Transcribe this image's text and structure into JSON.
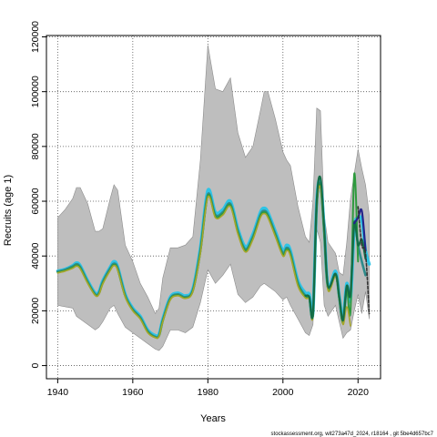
{
  "chart_data": {
    "type": "line",
    "title": "",
    "xlabel": "Years",
    "ylabel": "Recruits (age 1)",
    "xlim": [
      1937,
      2026
    ],
    "ylim": [
      -4800,
      120500
    ],
    "x_ticks": [
      1940,
      1960,
      1980,
      2000,
      2020
    ],
    "y_ticks": [
      0,
      20000,
      40000,
      60000,
      80000,
      100000,
      120000
    ],
    "grid": true,
    "legend": "none",
    "footnote": "stockassessment.org, wit273a47d_2024, r18164 , git 5be4d657bc7",
    "colors": {
      "band": "#bebebe",
      "band_outline": "#8c8c8c",
      "cyan": "#2ec4e6",
      "teal": "#2e8b8b",
      "green": "#2e9a3e",
      "olive": "#a6a62a",
      "dark_green": "#136d46",
      "navy": "#24248c",
      "dashed": "#333333"
    },
    "confidence_band": {
      "x": [
        1940,
        1942,
        1944,
        1945,
        1946,
        1948,
        1950,
        1951,
        1952,
        1954,
        1955,
        1956,
        1958,
        1960,
        1962,
        1964,
        1966,
        1967,
        1968,
        1970,
        1972,
        1974,
        1976,
        1978,
        1980,
        1982,
        1984,
        1986,
        1988,
        1990,
        1992,
        1994,
        1995,
        1996,
        1998,
        2000,
        2001,
        2002,
        2004,
        2006,
        2007,
        2008,
        2009,
        2010,
        2011,
        2012,
        2014,
        2015,
        2016,
        2017,
        2018,
        2019,
        2020,
        2021,
        2022,
        2023
      ],
      "upper": [
        54000,
        57000,
        61000,
        65000,
        65000,
        59000,
        49000,
        49000,
        50000,
        61000,
        66000,
        64000,
        44000,
        38000,
        30000,
        25000,
        19000,
        21000,
        32000,
        43000,
        43000,
        44000,
        47000,
        75000,
        117000,
        101000,
        100000,
        105000,
        85000,
        76000,
        80000,
        93000,
        100000,
        100000,
        90000,
        78000,
        75000,
        73000,
        58000,
        47000,
        45000,
        60000,
        94000,
        93000,
        55000,
        45000,
        41000,
        34000,
        33000,
        45000,
        61000,
        70000,
        79000,
        72000,
        66000,
        55000
      ],
      "lower": [
        22000,
        21500,
        21000,
        18000,
        17000,
        15000,
        13000,
        14000,
        16000,
        21000,
        22000,
        19000,
        14000,
        12000,
        10000,
        8000,
        6000,
        5500,
        7000,
        13000,
        13000,
        12000,
        14000,
        23000,
        35000,
        30000,
        33000,
        37000,
        26000,
        23000,
        25000,
        29000,
        30000,
        29000,
        27000,
        24000,
        25000,
        22000,
        17000,
        12000,
        11000,
        15000,
        50000,
        45000,
        22000,
        18000,
        22000,
        16000,
        10000,
        12000,
        13000,
        20000,
        26000,
        19000,
        27000,
        17000
      ]
    },
    "series": [
      {
        "color_key": "cyan",
        "x": [
          1940,
          1942,
          1944,
          1945,
          1946,
          1948,
          1950,
          1951,
          1952,
          1954,
          1955,
          1956,
          1958,
          1960,
          1962,
          1964,
          1966,
          1967,
          1968,
          1970,
          1972,
          1974,
          1976,
          1978,
          1980,
          1982,
          1984,
          1986,
          1988,
          1990,
          1992,
          1994,
          1995,
          1996,
          1998,
          2000,
          2001,
          2002,
          2004,
          2006,
          2007,
          2008,
          2009,
          2010,
          2011,
          2012,
          2014,
          2015,
          2016,
          2017,
          2018,
          2019,
          2020,
          2021,
          2022,
          2023
        ],
        "y": [
          34500,
          35200,
          36500,
          37500,
          36500,
          31000,
          26500,
          27000,
          31000,
          36000,
          38000,
          36000,
          26000,
          21000,
          18000,
          13000,
          11000,
          11500,
          17000,
          25000,
          26500,
          25500,
          28000,
          43000,
          64000,
          56000,
          57000,
          60000,
          50000,
          43500,
          48000,
          56000,
          57500,
          56000,
          49000,
          42000,
          44000,
          42000,
          31000,
          26500,
          26000,
          19500,
          60000,
          67000,
          50000,
          29000,
          34500,
          25500,
          17000,
          30000,
          24000,
          50000,
          54000,
          53000,
          42000,
          37000
        ]
      },
      {
        "color_key": "teal",
        "x": [
          1940,
          1942,
          1944,
          1945,
          1946,
          1948,
          1950,
          1951,
          1952,
          1954,
          1955,
          1956,
          1958,
          1960,
          1962,
          1964,
          1966,
          1967,
          1968,
          1970,
          1972,
          1974,
          1976,
          1978,
          1980,
          1982,
          1984,
          1986,
          1988,
          1990,
          1992,
          1994,
          1995,
          1996,
          1998,
          2000,
          2001,
          2002,
          2004,
          2006,
          2007,
          2008,
          2009,
          2010,
          2011,
          2012,
          2014,
          2015,
          2016,
          2017,
          2018,
          2019,
          2020,
          2021,
          2022
        ],
        "y": [
          34300,
          35000,
          36200,
          37000,
          36000,
          30500,
          26000,
          26500,
          30500,
          35500,
          37200,
          35500,
          25500,
          20500,
          17500,
          12500,
          10500,
          11000,
          16500,
          24500,
          26000,
          25000,
          27500,
          42000,
          62500,
          55000,
          56000,
          59000,
          49000,
          42500,
          47000,
          55000,
          56500,
          55000,
          48000,
          41000,
          43000,
          41000,
          30000,
          25500,
          25000,
          19000,
          59000,
          66000,
          49000,
          28500,
          33500,
          25000,
          16000,
          29000,
          26000,
          52000,
          44000,
          38000,
          33000
        ]
      },
      {
        "color_key": "green",
        "x": [
          1940,
          1942,
          1944,
          1945,
          1946,
          1948,
          1950,
          1951,
          1952,
          1954,
          1955,
          1956,
          1958,
          1960,
          1962,
          1964,
          1966,
          1967,
          1968,
          1970,
          1972,
          1974,
          1976,
          1978,
          1980,
          1982,
          1984,
          1986,
          1988,
          1990,
          1992,
          1994,
          1995,
          1996,
          1998,
          2000,
          2001,
          2002,
          2004,
          2006,
          2007,
          2008,
          2009,
          2010,
          2011,
          2012,
          2014,
          2015,
          2016,
          2017,
          2018,
          2019,
          2020
        ],
        "y": [
          34000,
          34700,
          35800,
          36600,
          35600,
          30200,
          25800,
          26200,
          30000,
          35000,
          36800,
          35000,
          25200,
          20200,
          17200,
          12200,
          10300,
          10800,
          16200,
          24200,
          25700,
          24700,
          27200,
          41500,
          62000,
          54500,
          55500,
          58500,
          48500,
          42000,
          46500,
          54500,
          56000,
          54500,
          47500,
          40500,
          42500,
          40500,
          29500,
          25000,
          24500,
          18500,
          58000,
          65500,
          48000,
          28000,
          33000,
          24500,
          15500,
          28000,
          20000,
          70000,
          38000
        ]
      },
      {
        "color_key": "olive",
        "x": [
          1940,
          1942,
          1944,
          1945,
          1946,
          1948,
          1950,
          1951,
          1952,
          1954,
          1955,
          1956,
          1958,
          1960,
          1962,
          1964,
          1966,
          1967,
          1968,
          1970,
          1972,
          1974,
          1976,
          1978,
          1980,
          1982,
          1984,
          1986,
          1988,
          1990,
          1992,
          1994,
          1995,
          1996,
          1998,
          2000,
          2001,
          2002,
          2004,
          2006,
          2007,
          2008,
          2009,
          2010,
          2011,
          2012,
          2014,
          2015,
          2016,
          2017,
          2018
        ],
        "y": [
          33800,
          34500,
          35500,
          36300,
          35300,
          30000,
          25600,
          26000,
          29800,
          34800,
          36500,
          34800,
          25000,
          20000,
          17000,
          12000,
          10200,
          10700,
          16000,
          24000,
          25500,
          24500,
          27000,
          41000,
          61500,
          54000,
          55000,
          58000,
          48000,
          41500,
          46000,
          54000,
          55500,
          54000,
          47000,
          40000,
          42000,
          40000,
          29000,
          24700,
          24200,
          18200,
          57500,
          65000,
          47500,
          27500,
          32500,
          24000,
          15000,
          21500,
          14500
        ]
      },
      {
        "color_key": "dark_green",
        "x": [
          2006,
          2007,
          2008,
          2009,
          2010,
          2011,
          2012,
          2014,
          2015,
          2016,
          2017,
          2018,
          2019,
          2020,
          2021,
          2022
        ],
        "y": [
          25500,
          25000,
          19000,
          60000,
          68500,
          50000,
          29000,
          33500,
          25000,
          16500,
          29000,
          26000,
          52000,
          44000,
          46000,
          39000
        ]
      },
      {
        "color_key": "navy",
        "x": [
          2019,
          2020,
          2021,
          2022
        ],
        "y": [
          52000,
          54000,
          56500,
          42000
        ]
      },
      {
        "color_key": "dashed",
        "dashed": true,
        "x": [
          2020,
          2021,
          2022,
          2023
        ],
        "y": [
          58000,
          44000,
          41000,
          19000
        ]
      }
    ]
  }
}
